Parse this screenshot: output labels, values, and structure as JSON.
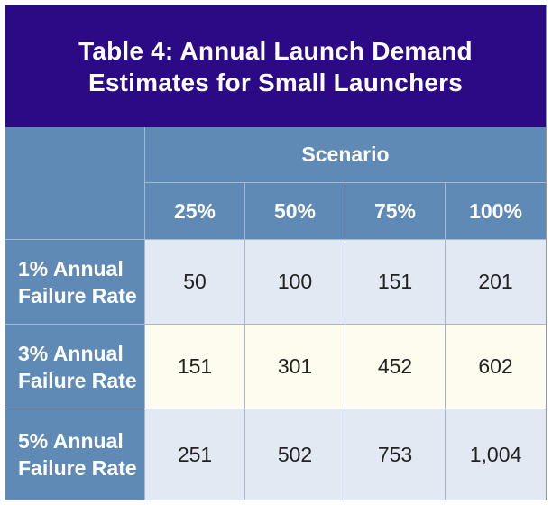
{
  "table": {
    "title_line1": "Table 4: Annual Launch Demand",
    "title_line2": "Estimates for Small Launchers",
    "scenario_label": "Scenario",
    "columns": [
      "25%",
      "50%",
      "75%",
      "100%"
    ],
    "rows": [
      {
        "label_line1": "1% Annual",
        "label_line2": "Failure Rate",
        "values": [
          "50",
          "100",
          "151",
          "201"
        ]
      },
      {
        "label_line1": "3% Annual",
        "label_line2": "Failure Rate",
        "values": [
          "151",
          "301",
          "452",
          "602"
        ]
      },
      {
        "label_line1": "5% Annual",
        "label_line2": "Failure Rate",
        "values": [
          "251",
          "502",
          "753",
          "1,004"
        ]
      }
    ]
  },
  "colors": {
    "title_bg": "#2c0a86",
    "header_bg": "#5f8ab6",
    "row_light_blue": "#e3e9f2",
    "row_cream": "#fdfcef"
  }
}
